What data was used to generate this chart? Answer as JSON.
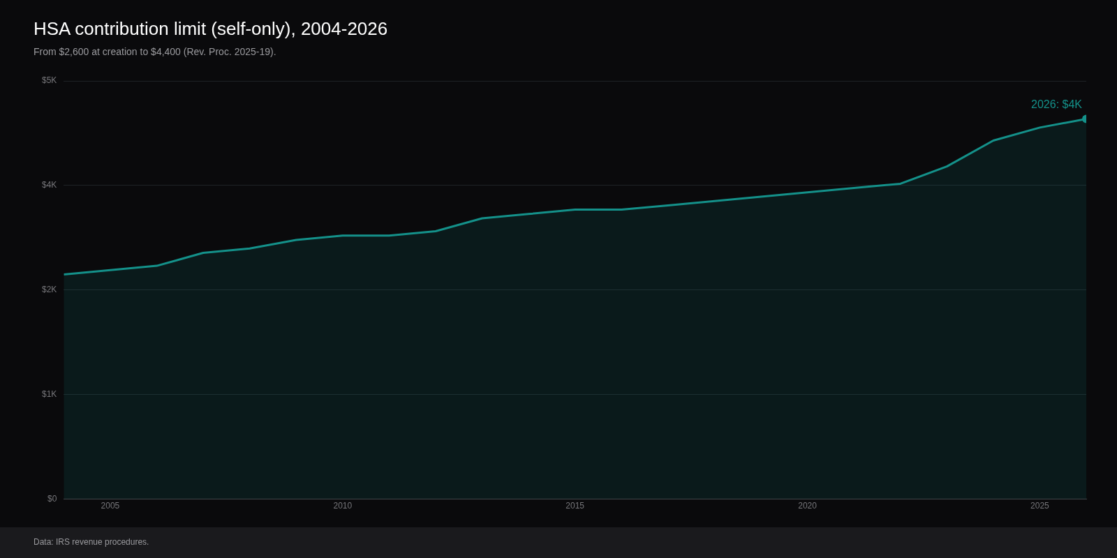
{
  "chart_data": {
    "type": "area",
    "title": "HSA contribution limit (self-only), 2004-2026",
    "subtitle": "From $2,600 at creation to $4,400 (Rev. Proc. 2025-19).",
    "x": [
      2004,
      2005,
      2006,
      2007,
      2008,
      2009,
      2010,
      2011,
      2012,
      2013,
      2014,
      2015,
      2016,
      2017,
      2018,
      2019,
      2020,
      2021,
      2022,
      2023,
      2024,
      2025,
      2026
    ],
    "series": [
      {
        "color": "#14918a",
        "values": [
          2600,
          2650,
          2700,
          2850,
          2900,
          3000,
          3050,
          3050,
          3100,
          3250,
          3300,
          3350,
          3350,
          3400,
          3450,
          3500,
          3550,
          3600,
          3650,
          3850,
          4150,
          4300,
          4400
        ]
      }
    ],
    "xlim": [
      2004,
      2026
    ],
    "xticks": [
      2005,
      2010,
      2015,
      2020,
      2025
    ],
    "ylim": [
      0,
      4840
    ],
    "yticks": [
      {
        "value": 0,
        "label": "$0"
      },
      {
        "value": 1210,
        "label": "$1K"
      },
      {
        "value": 2420,
        "label": "$2K"
      },
      {
        "value": 3630,
        "label": "$4K"
      },
      {
        "value": 4840,
        "label": "$5K"
      }
    ],
    "grid": "y",
    "legend": false,
    "marker": "none",
    "line_style": "solid",
    "annotations": [
      {
        "text": "2026: $4K",
        "x": 2026,
        "y": 4400
      },
      "Data: IRS revenue procedures."
    ]
  }
}
